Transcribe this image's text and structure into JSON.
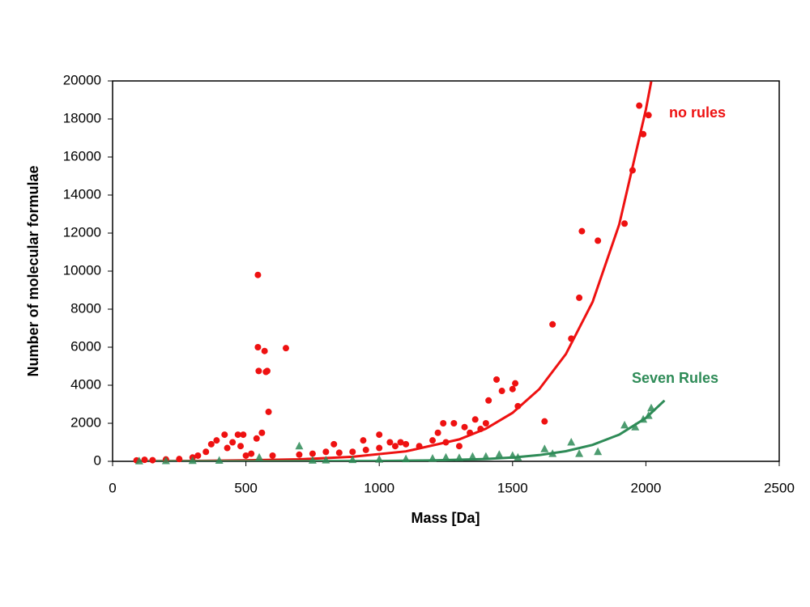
{
  "chart_data": {
    "type": "scatter",
    "xlabel": "Mass [Da]",
    "ylabel": "Number of molecular formulae",
    "xlim": [
      0,
      2500
    ],
    "xticks": [
      0,
      500,
      1000,
      1500,
      2000,
      2500
    ],
    "ylim": [
      0,
      20000
    ],
    "yticks": [
      0,
      2000,
      4000,
      6000,
      8000,
      10000,
      12000,
      14000,
      16000,
      18000,
      20000
    ],
    "grid": false,
    "series": [
      {
        "name": "no rules",
        "color": "#ee1111",
        "marker": "circle",
        "x": [
          90,
          120,
          150,
          200,
          250,
          300,
          320,
          350,
          370,
          390,
          420,
          430,
          450,
          470,
          480,
          490,
          500,
          520,
          540,
          545,
          545,
          548,
          560,
          570,
          575,
          580,
          585,
          600,
          650,
          700,
          750,
          800,
          830,
          850,
          900,
          940,
          950,
          1000,
          1000,
          1040,
          1060,
          1080,
          1100,
          1150,
          1200,
          1220,
          1240,
          1250,
          1280,
          1300,
          1320,
          1340,
          1360,
          1380,
          1400,
          1410,
          1440,
          1460,
          1500,
          1510,
          1520,
          1620,
          1650,
          1720,
          1750,
          1760,
          1820,
          1920,
          1950,
          1975,
          1990,
          2010
        ],
        "values": [
          50,
          80,
          60,
          100,
          120,
          200,
          300,
          500,
          900,
          1100,
          1400,
          700,
          1000,
          1400,
          800,
          1400,
          300,
          400,
          1200,
          9800,
          6000,
          4750,
          1500,
          5800,
          4700,
          4750,
          2600,
          300,
          5950,
          350,
          400,
          500,
          900,
          450,
          500,
          1100,
          600,
          1400,
          700,
          1000,
          800,
          1000,
          900,
          800,
          1100,
          1500,
          2000,
          1000,
          2000,
          800,
          1800,
          1500,
          2200,
          1700,
          2000,
          3200,
          4300,
          3700,
          3800,
          4100,
          2900,
          2100,
          7200,
          6450,
          8600,
          12100,
          11600,
          12500,
          15300,
          18700,
          17200,
          18200
        ],
        "trend": {
          "x": [
            100,
            300,
            500,
            700,
            900,
            1100,
            1300,
            1400,
            1500,
            1600,
            1700,
            1800,
            1900,
            2000,
            2020
          ],
          "values": [
            10,
            22,
            49,
            107,
            237,
            522,
            1153,
            1714,
            2550,
            3790,
            5640,
            8380,
            12460,
            18500,
            19970
          ]
        }
      },
      {
        "name": "Seven Rules",
        "color": "#2e8b57",
        "marker": "triangle",
        "x": [
          100,
          200,
          300,
          400,
          550,
          700,
          750,
          800,
          900,
          1000,
          1100,
          1200,
          1250,
          1300,
          1350,
          1400,
          1450,
          1500,
          1520,
          1620,
          1650,
          1720,
          1750,
          1820,
          1920,
          1960,
          1990,
          2010,
          2020
        ],
        "values": [
          10,
          20,
          30,
          40,
          200,
          800,
          50,
          60,
          80,
          100,
          120,
          150,
          200,
          180,
          250,
          250,
          350,
          300,
          200,
          650,
          400,
          1000,
          400,
          500,
          1900,
          1800,
          2200,
          2400,
          2800
        ],
        "trend": {
          "x": [
            100,
            500,
            1000,
            1200,
            1400,
            1500,
            1600,
            1700,
            1800,
            1900,
            2000,
            2070
          ],
          "values": [
            0.2,
            1.5,
            18,
            47,
            124,
            200,
            327,
            531,
            863,
            1403,
            2280,
            3200
          ]
        }
      }
    ]
  }
}
